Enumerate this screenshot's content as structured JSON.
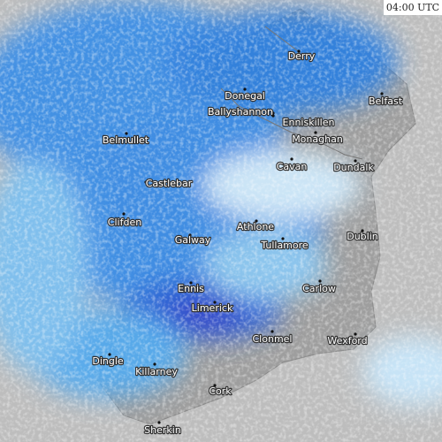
{
  "timestamp": "04:00 UTC",
  "places": [
    "Derry",
    "Donegal",
    "Ballyshannon",
    "Enniskillen",
    "Belfast",
    "Belmullet",
    "Monaghan",
    "Cavan",
    "Dundalk",
    "Castlebar",
    "Clifden",
    "Athlone",
    "Galway",
    "Dublin",
    "Tullamore",
    "Carlow",
    "Ennis",
    "Limerick",
    "Clonmel",
    "Wexford",
    "Dingle",
    "Killarney",
    "Cork",
    "Sherkin"
  ]
}
